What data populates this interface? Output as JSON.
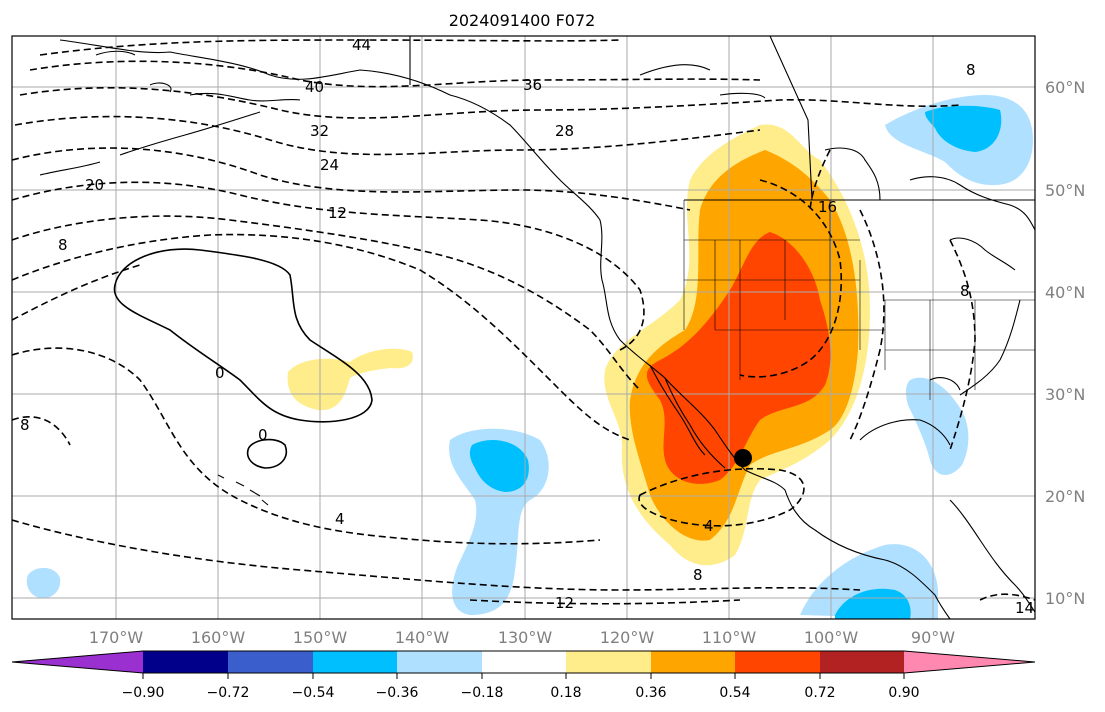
{
  "title": "2024091400 F072",
  "lon_ticks": [
    "170°W",
    "160°W",
    "150°W",
    "140°W",
    "130°W",
    "120°W",
    "110°W",
    "100°W",
    "90°W"
  ],
  "lat_ticks": [
    "60°N",
    "50°N",
    "40°N",
    "30°N",
    "20°N",
    "10°N"
  ],
  "colorbar": {
    "colors": [
      "#9b30d0",
      "#00008b",
      "#3a5fcd",
      "#00bfff",
      "#b0e0ff",
      "#ffffff",
      "#ffec8b",
      "#ffa500",
      "#ff4500",
      "#b22222",
      "#ff88b0"
    ],
    "tick_labels": [
      "−0.90",
      "−0.72",
      "−0.54",
      "−0.36",
      "−0.18",
      "0.18",
      "0.36",
      "0.54",
      "0.72",
      "0.90"
    ]
  },
  "contour_labels": [
    "44",
    "40",
    "36",
    "32",
    "28",
    "24",
    "20",
    "16",
    "12",
    "8",
    "8",
    "8",
    "8",
    "0",
    "0",
    "4",
    "4",
    "8",
    "12",
    "14"
  ],
  "marker": {
    "label_lon": "108°W",
    "label_lat": "23.5°N"
  }
}
